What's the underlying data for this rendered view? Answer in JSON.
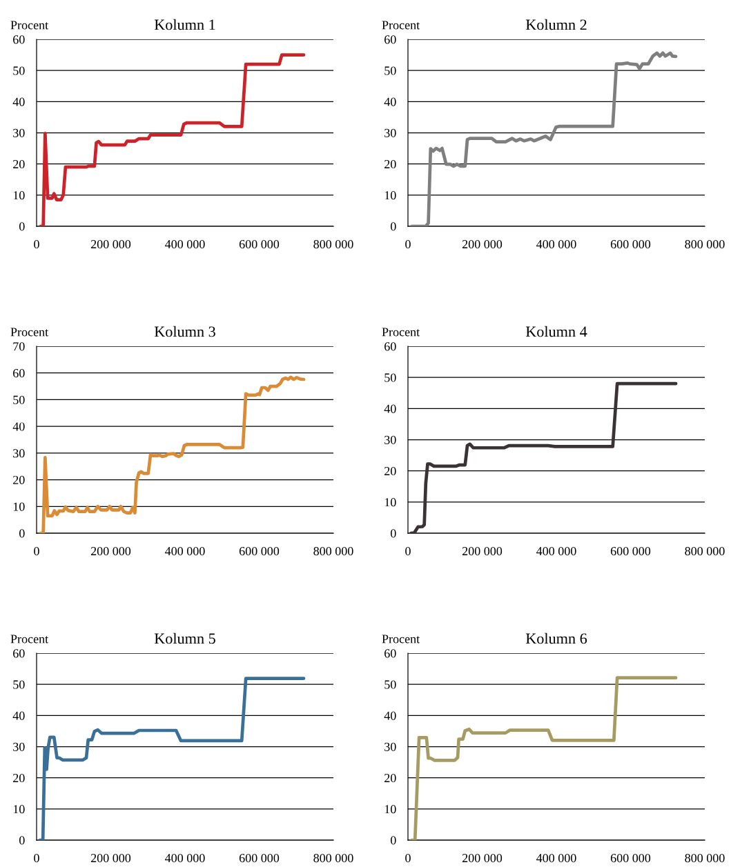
{
  "chart_data": [
    {
      "type": "line",
      "title": "Kolumn 1",
      "ylabel": "Procent",
      "xlim": [
        0,
        800000
      ],
      "ylim": [
        0,
        60
      ],
      "xticks": [
        0,
        {
          "value": 200000,
          "label": "200 000"
        },
        {
          "value": 400000,
          "label": "400 000"
        },
        {
          "value": 600000,
          "label": "600 000"
        },
        {
          "value": 800000,
          "label": "800 000"
        }
      ],
      "yticks": [
        0,
        10,
        20,
        30,
        40,
        50,
        60
      ],
      "grid": "y",
      "line_style": "solid",
      "marker": "none",
      "series": [
        {
          "color": "#cc2229",
          "x": [
            11000,
            18000,
            23000,
            30000,
            42000,
            47000,
            54000,
            66000,
            72000,
            78000,
            134000,
            140000,
            156000,
            161000,
            167000,
            175000,
            238000,
            244000,
            265000,
            276000,
            301000,
            307000,
            389000,
            397000,
            405000,
            493000,
            506000,
            553000,
            564000,
            654000,
            661000,
            720000
          ],
          "values": [
            0,
            0,
            29.8,
            9,
            9,
            10.5,
            8.5,
            8.5,
            10,
            19,
            19,
            19.3,
            19.3,
            26.8,
            27.2,
            26.1,
            26.1,
            27.3,
            27.3,
            28.1,
            28.1,
            29.3,
            29.3,
            32.8,
            33.2,
            33.2,
            32,
            32,
            52,
            52,
            55,
            55
          ]
        }
      ]
    },
    {
      "type": "line",
      "title": "Kolumn 2",
      "ylabel": "Procent",
      "xlim": [
        0,
        800000
      ],
      "ylim": [
        0,
        60
      ],
      "xticks": [
        0,
        {
          "value": 200000,
          "label": "200 000"
        },
        {
          "value": 400000,
          "label": "400 000"
        },
        {
          "value": 600000,
          "label": "600 000"
        },
        {
          "value": 800000,
          "label": "800 000"
        }
      ],
      "yticks": [
        0,
        10,
        20,
        30,
        40,
        50,
        60
      ],
      "grid": "y",
      "line_style": "solid",
      "marker": "none",
      "series": [
        {
          "color": "#7f7f7f",
          "x": [
            10000,
            48000,
            55000,
            61000,
            68000,
            76000,
            86000,
            92000,
            103000,
            114000,
            123000,
            132000,
            142000,
            154000,
            160000,
            167000,
            226000,
            238000,
            263000,
            281000,
            291000,
            303000,
            313000,
            331000,
            340000,
            371000,
            384000,
            399000,
            409000,
            552000,
            562000,
            576000,
            592000,
            598000,
            617000,
            624000,
            632000,
            648000,
            660000,
            671000,
            679000,
            687000,
            694000,
            707000,
            713000,
            722000
          ],
          "values": [
            0,
            0,
            1,
            24.9,
            24.1,
            25,
            24.3,
            25,
            19.9,
            19.9,
            19.3,
            19.9,
            19.3,
            19.3,
            27.8,
            28.2,
            28.2,
            27.1,
            27.1,
            28.2,
            27.4,
            28,
            27.4,
            28,
            27.4,
            28.9,
            27.8,
            31.8,
            32.1,
            32.1,
            52.1,
            52.1,
            52.4,
            52.1,
            51.9,
            50.6,
            52.1,
            52.1,
            54.6,
            55.6,
            54.6,
            55.6,
            54.6,
            55.6,
            54.6,
            54.5
          ]
        }
      ]
    },
    {
      "type": "line",
      "title": "Kolumn 3",
      "ylabel": "Procent",
      "xlim": [
        0,
        800000
      ],
      "ylim": [
        0,
        70
      ],
      "xticks": [
        0,
        {
          "value": 200000,
          "label": "200 000"
        },
        {
          "value": 400000,
          "label": "400 000"
        },
        {
          "value": 600000,
          "label": "600 000"
        },
        {
          "value": 800000,
          "label": "800 000"
        }
      ],
      "yticks": [
        0,
        10,
        20,
        30,
        40,
        50,
        60,
        70
      ],
      "grid": "y",
      "line_style": "solid",
      "marker": "none",
      "series": [
        {
          "color": "#d98b35",
          "x": [
            11000,
            18000,
            23000,
            30000,
            42000,
            48000,
            55000,
            61000,
            72000,
            78000,
            85000,
            99000,
            107000,
            114000,
            131000,
            137000,
            143000,
            156000,
            165000,
            173000,
            190000,
            197000,
            203000,
            222000,
            227000,
            235000,
            244000,
            253000,
            259000,
            265000,
            269000,
            276000,
            282000,
            288000,
            301000,
            307000,
            313000,
            326000,
            330000,
            339000,
            348000,
            354000,
            370000,
            376000,
            383000,
            391000,
            398000,
            405000,
            493000,
            506000,
            550000,
            556000,
            564000,
            572000,
            591000,
            597000,
            601000,
            607000,
            616000,
            624000,
            630000,
            647000,
            657000,
            663000,
            671000,
            678000,
            685000,
            693000,
            701000,
            711000,
            720000
          ],
          "values": [
            0,
            0,
            28.3,
            6.5,
            6.5,
            8.4,
            7,
            8.3,
            8.3,
            9.8,
            8.5,
            8.1,
            9.6,
            8.1,
            8.1,
            9.6,
            8.1,
            8.1,
            10,
            8.7,
            8.7,
            10,
            8.7,
            8.7,
            10,
            8.1,
            7.6,
            7.6,
            9.6,
            7.6,
            19.1,
            22.6,
            23,
            22.4,
            22.4,
            29.3,
            29,
            29,
            29.3,
            28.7,
            29,
            29.6,
            29.8,
            29.1,
            28.7,
            29.3,
            32.8,
            33.2,
            33.2,
            32,
            32,
            32.2,
            52.2,
            51.7,
            51.7,
            52.2,
            51.9,
            54.5,
            54.5,
            53.5,
            55,
            55,
            56.1,
            57.6,
            58.1,
            57.6,
            58.4,
            57.6,
            58.3,
            57.7,
            57.6
          ]
        }
      ]
    },
    {
      "type": "line",
      "title": "Kolumn 4",
      "ylabel": "Procent",
      "xlim": [
        0,
        800000
      ],
      "ylim": [
        0,
        60
      ],
      "xticks": [
        0,
        {
          "value": 200000,
          "label": "200 000"
        },
        {
          "value": 400000,
          "label": "400 000"
        },
        {
          "value": 600000,
          "label": "600 000"
        },
        {
          "value": 800000,
          "label": "800 000"
        }
      ],
      "yticks": [
        0,
        10,
        20,
        30,
        40,
        50,
        60
      ],
      "grid": "y",
      "line_style": "solid",
      "marker": "none",
      "series": [
        {
          "color": "#3a3234",
          "x": [
            8000,
            17000,
            27000,
            39000,
            44000,
            48000,
            53000,
            60000,
            70000,
            129000,
            139000,
            154000,
            160000,
            167000,
            176000,
            260000,
            272000,
            378000,
            396000,
            552000,
            564000,
            722000
          ],
          "values": [
            0,
            0.1,
            2,
            2.1,
            2.7,
            16,
            22.2,
            22.2,
            21.5,
            21.5,
            21.9,
            21.9,
            28.1,
            28.6,
            27.4,
            27.4,
            28.1,
            28.1,
            27.8,
            27.8,
            48,
            48
          ]
        }
      ]
    },
    {
      "type": "line",
      "title": "Kolumn 5",
      "ylabel": "Procent",
      "xlim": [
        0,
        800000
      ],
      "ylim": [
        0,
        60
      ],
      "xticks": [
        0,
        {
          "value": 200000,
          "label": "200 000"
        },
        {
          "value": 400000,
          "label": "400 000"
        },
        {
          "value": 600000,
          "label": "600 000"
        },
        {
          "value": 800000,
          "label": "800 000"
        }
      ],
      "yticks": [
        0,
        10,
        20,
        30,
        40,
        50,
        60
      ],
      "grid": "y",
      "line_style": "solid",
      "marker": "none",
      "series": [
        {
          "color": "#3a7098",
          "x": [
            9000,
            17000,
            22000,
            27000,
            31000,
            36000,
            47000,
            55000,
            61000,
            71000,
            124000,
            134000,
            139000,
            149000,
            156000,
            165000,
            175000,
            263000,
            276000,
            376000,
            389000,
            553000,
            564000,
            720000
          ],
          "values": [
            0,
            0,
            29.6,
            22.7,
            29.6,
            33,
            33,
            26.4,
            26.4,
            25.7,
            25.7,
            26.4,
            32.2,
            32.2,
            34.9,
            35.4,
            34.3,
            34.3,
            35.2,
            35.2,
            31.9,
            31.9,
            51.9,
            51.9
          ]
        }
      ]
    },
    {
      "type": "line",
      "title": "Kolumn 6",
      "ylabel": "Procent",
      "xlim": [
        0,
        800000
      ],
      "ylim": [
        0,
        60
      ],
      "xticks": [
        0,
        {
          "value": 200000,
          "label": "200 000"
        },
        {
          "value": 400000,
          "label": "400 000"
        },
        {
          "value": 600000,
          "label": "600 000"
        },
        {
          "value": 800000,
          "label": "800 000"
        }
      ],
      "yticks": [
        0,
        10,
        20,
        30,
        40,
        50,
        60
      ],
      "grid": "y",
      "line_style": "solid",
      "marker": "none",
      "series": [
        {
          "color": "#a69c62",
          "x": [
            10000,
            19000,
            30000,
            50000,
            55000,
            61000,
            72000,
            126000,
            134000,
            137000,
            148000,
            154000,
            165000,
            174000,
            263000,
            275000,
            378000,
            389000,
            555000,
            564000,
            722000
          ],
          "values": [
            0,
            0,
            32.9,
            32.9,
            26.3,
            26.3,
            25.6,
            25.6,
            26.5,
            32.4,
            32.4,
            35.1,
            35.6,
            34.4,
            34.4,
            35.3,
            35.3,
            32,
            32,
            52.1,
            52.1
          ]
        }
      ]
    }
  ]
}
